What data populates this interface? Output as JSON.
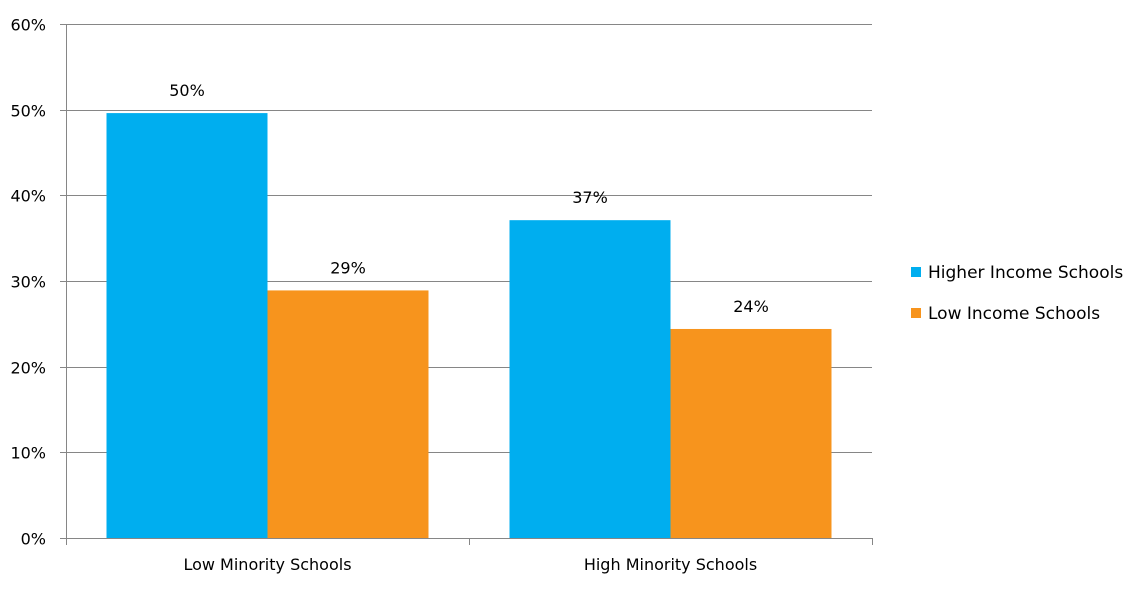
{
  "chart_data": {
    "type": "bar",
    "title": "",
    "xlabel": "",
    "ylabel": "",
    "categories": [
      "Low Minority Schools",
      "High Minority Schools"
    ],
    "series": [
      {
        "name": "Higher Income Schools",
        "color": "#00AEEF",
        "values": [
          49.6,
          37.1
        ],
        "labels": [
          "50%",
          "37%"
        ]
      },
      {
        "name": "Low Income Schools",
        "color": "#F7941D",
        "values": [
          28.9,
          24.4
        ],
        "labels": [
          "29%",
          "24%"
        ]
      }
    ],
    "ylim": [
      0,
      60
    ],
    "yticks": [
      0,
      10,
      20,
      30,
      40,
      50,
      60
    ],
    "ytick_labels": [
      "0%",
      "10%",
      "20%",
      "30%",
      "40%",
      "50%",
      "60%"
    ],
    "grid": true,
    "gridline_color": "#868686",
    "legend_position": "right"
  }
}
